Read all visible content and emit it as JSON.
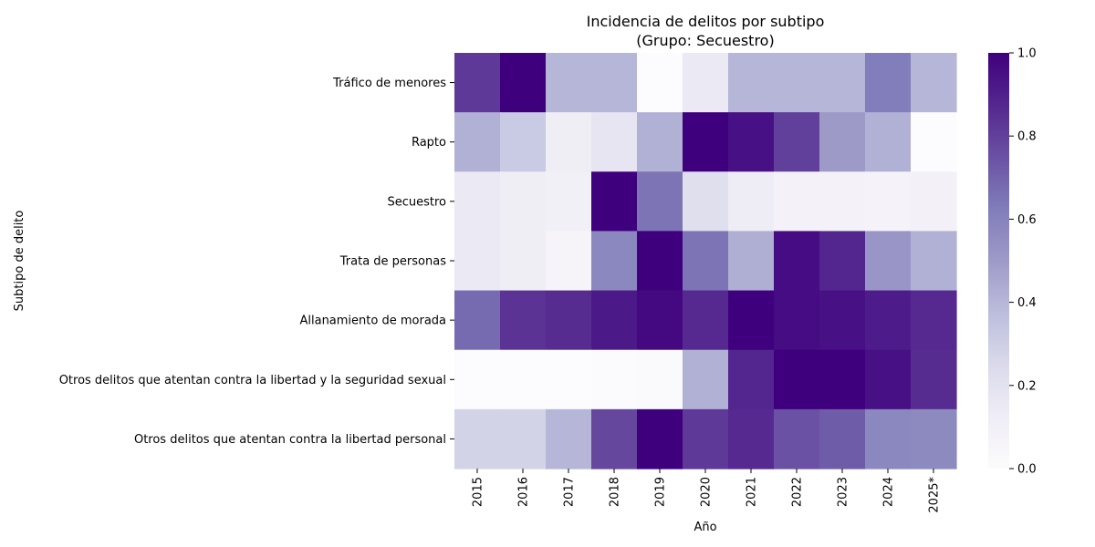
{
  "chart_data": {
    "type": "heatmap",
    "title": "Incidencia de delitos por subtipo",
    "subtitle": "(Grupo: Secuestro)",
    "xlabel": "Año",
    "ylabel": "Subtipo de delito",
    "x": [
      "2015",
      "2016",
      "2017",
      "2018",
      "2019",
      "2020",
      "2021",
      "2022",
      "2023",
      "2024",
      "2025*"
    ],
    "y": [
      "Tráfico de menores",
      "Rapto",
      "Secuestro",
      "Trata de personas",
      "Allanamiento de morada",
      "Otros delitos que atentan contra la libertad y la seguridad sexual",
      "Otros delitos que atentan contra la libertad personal"
    ],
    "values": [
      [
        0.82,
        1.0,
        0.4,
        0.4,
        0.0,
        0.15,
        0.4,
        0.4,
        0.4,
        0.62,
        0.4
      ],
      [
        0.42,
        0.32,
        0.12,
        0.18,
        0.42,
        1.0,
        0.95,
        0.8,
        0.5,
        0.42,
        0.0
      ],
      [
        0.15,
        0.12,
        0.1,
        1.0,
        0.65,
        0.22,
        0.13,
        0.08,
        0.08,
        0.07,
        0.09
      ],
      [
        0.15,
        0.12,
        0.06,
        0.58,
        1.0,
        0.65,
        0.43,
        0.96,
        0.88,
        0.52,
        0.42
      ],
      [
        0.68,
        0.84,
        0.86,
        0.92,
        0.97,
        0.87,
        1.0,
        0.96,
        0.95,
        0.91,
        0.87
      ],
      [
        0.0,
        0.0,
        0.0,
        0.01,
        0.02,
        0.42,
        0.88,
        1.0,
        1.0,
        0.95,
        0.86
      ],
      [
        0.28,
        0.28,
        0.4,
        0.78,
        1.0,
        0.82,
        0.87,
        0.75,
        0.72,
        0.58,
        0.57
      ]
    ],
    "colorbar": {
      "min": 0,
      "max": 1,
      "ticks": [
        "0.0",
        "0.2",
        "0.4",
        "0.6",
        "0.8",
        "1.0"
      ],
      "colormap": "Purples",
      "low_color": "#fcfbfd",
      "high_color": "#3f007d"
    },
    "grid": false
  }
}
